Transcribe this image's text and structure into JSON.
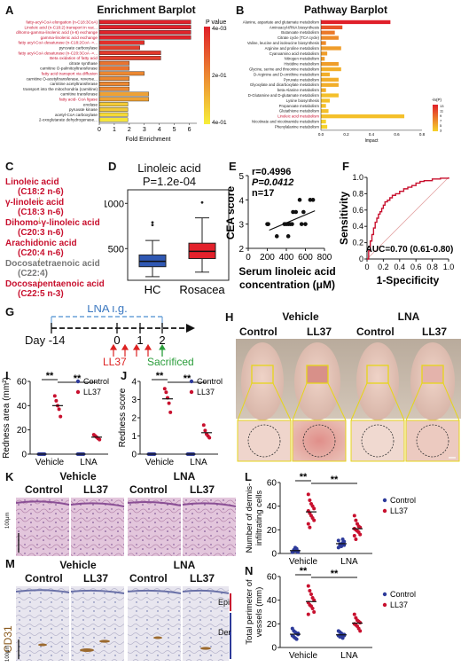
{
  "panels": {
    "A": {
      "letter": "A",
      "chart_data": {
        "type": "bar",
        "title": "Enrichment Barplot",
        "xlabel": "Fold Enrichment",
        "legend_title": "P value",
        "legend_ticks": [
          "4e-03",
          "2e-01",
          "4e-01"
        ],
        "x_ticks": [
          "0",
          "1",
          "2",
          "3",
          "4",
          "5",
          "6"
        ],
        "xlim": [
          0,
          6.5
        ],
        "categories": [
          "fatty-acyl-CoA elongation (n-C18:3CoA)",
          "Linoleic acid (n-C18:2) transport in vac...",
          "dihomo-gamma-linolenic acid (n-6) exchange",
          "gamma-linolenic acid exchange",
          "fatty acyl-CoA desaturase (n-C18:2CoA ->...",
          "pyruvate carboxylase",
          "fatty acyl-CoA desaturase (n-C20:3CoA ->...",
          "Beta oxidation of fatty acid",
          "citrate synthase",
          "carnitine O-palmitoyltransferase",
          "fatty acid transport via diffusion",
          "carnitine O-acetyltransferase, reverse...",
          "carnitine acetyltransferase",
          "transport into the mitochondria (carnitine)",
          "carnitine transferase",
          "fatty acid- CoA ligase",
          "enolase",
          "pyruvate kinase",
          "acetyl-CoA carboxylase",
          "2-oxoglutarate dehydrogenase..."
        ],
        "highlighted": [
          1,
          1,
          1,
          1,
          1,
          0,
          1,
          1,
          0,
          0,
          1,
          0,
          0,
          0,
          0,
          1,
          0,
          0,
          0,
          0
        ],
        "values": [
          6.1,
          6.1,
          6.1,
          6.1,
          3.0,
          2.7,
          4.1,
          4.1,
          2.0,
          2.0,
          3.0,
          2.0,
          2.0,
          2.0,
          3.3,
          3.3,
          1.9,
          1.9,
          1.9,
          1.9
        ],
        "pvalues": [
          0.004,
          0.004,
          0.004,
          0.004,
          0.03,
          0.06,
          0.05,
          0.06,
          0.16,
          0.16,
          0.2,
          0.2,
          0.2,
          0.2,
          0.25,
          0.25,
          0.33,
          0.33,
          0.36,
          0.38
        ]
      }
    },
    "B": {
      "letter": "B",
      "chart_data": {
        "type": "bar",
        "title": "Pathway Barplot",
        "xlabel": "Impact",
        "legend_title": "-ln(P)",
        "legend_ticks": [
          "13",
          "11",
          "9",
          "7",
          "5",
          "3"
        ],
        "x_ticks": [
          "0.0",
          "0.2",
          "0.4",
          "0.6",
          "0.8"
        ],
        "xlim": [
          0,
          0.8
        ],
        "categories": [
          "Alanine, aspartate and glutamate metabolism",
          "Aminoacyl-tRNA biosynthesis",
          "Butanoate metabolism",
          "Citrate cycle (TCA cycle)",
          "Valine, leucine and isoleucine biosynthesis",
          "Arginine and proline metabolism",
          "Cyanoamino acid metabolism",
          "Nitrogen metabolism",
          "Histidine metabolism",
          "Glycine, serine and threonine metabolism",
          "D-Arginine and D-ornithine metabolism",
          "Pyruvate metabolism",
          "Glyoxylate and dicarboxylate metabolism",
          "beta-Alanine metabolism",
          "D-Glutamine and D-glutamate metabolism",
          "Lysine biosynthesis",
          "Propanoate metabolism",
          "Glutathione metabolism",
          "Linoleic acid metabolism",
          "Nicotinate and nicotinamide metabolism",
          "Phenylalanine metabolism"
        ],
        "highlighted": [
          0,
          0,
          0,
          0,
          0,
          0,
          0,
          0,
          0,
          0,
          0,
          0,
          0,
          0,
          0,
          0,
          0,
          0,
          1,
          0,
          0
        ],
        "values": [
          0.55,
          0.17,
          0.11,
          0.14,
          0.04,
          0.16,
          0.05,
          0.03,
          0.14,
          0.16,
          0.07,
          0.14,
          0.14,
          0.04,
          0.14,
          0.07,
          0.04,
          0.06,
          0.66,
          0.04,
          0.05
        ],
        "neglogp": [
          13,
          10,
          8,
          7,
          7,
          6,
          6,
          6,
          6,
          5,
          5,
          5,
          5,
          5,
          4,
          4,
          4,
          4,
          4,
          3,
          3
        ]
      }
    },
    "C": {
      "letter": "C",
      "steps": [
        {
          "name": "Linoleic acid",
          "formula": "(C18:2 n-6)",
          "color": "#c8102e"
        },
        {
          "name": "γ-linoleic acid",
          "formula": "(C18:3 n-6)",
          "color": "#c8102e"
        },
        {
          "name": "Dihomo-γ-linoleic acid",
          "formula": "(C20:3 n-6)",
          "color": "#c8102e"
        },
        {
          "name": "Arachidonic acid",
          "formula": "(C20:4 n-6)",
          "color": "#c8102e"
        },
        {
          "name": "Docosatetraenoic acid",
          "formula": "(C22:4)",
          "color": "#777777"
        },
        {
          "name": "Docosapentaenoic acid",
          "formula": "(C22:5 n-3)",
          "color": "#c8102e"
        }
      ]
    },
    "D": {
      "letter": "D",
      "chart_data": {
        "type": "box",
        "title": "Linoleic acid",
        "subtitle": "P=1.2e-04",
        "categories": [
          "HC",
          "Rosacea"
        ],
        "colors": [
          "#2f58b3",
          "#e3212b"
        ],
        "y_ticks": [
          "500",
          "1000"
        ],
        "ylim": [
          150,
          1150
        ],
        "boxes": [
          {
            "whisker_low": 190,
            "q1": 300,
            "median": 360,
            "q3": 430,
            "whisker_high": 590,
            "outliers": [
              760,
              790
            ]
          },
          {
            "whisker_low": 240,
            "q1": 390,
            "median": 470,
            "q3": 560,
            "whisker_high": 840,
            "outliers": [
              1010
            ]
          }
        ]
      }
    },
    "E": {
      "letter": "E",
      "chart_data": {
        "type": "scatter",
        "ylabel": "CEA score",
        "xlabel_line1": "Serum linoleic acid",
        "xlabel_line2": "concentration (μM)",
        "stats_r": "r=0.4996",
        "stats_p": "P=0.0412",
        "stats_n": "n=17",
        "x_ticks": [
          "0",
          "200",
          "400",
          "600",
          "800"
        ],
        "y_ticks": [
          "2",
          "3",
          "4",
          "5"
        ],
        "xlim": [
          0,
          800
        ],
        "ylim": [
          2,
          5
        ],
        "x": [
          200,
          210,
          380,
          400,
          420,
          440,
          460,
          470,
          500,
          540,
          560,
          600,
          300,
          420,
          650,
          580,
          680
        ],
        "y": [
          3,
          3,
          3,
          3,
          3,
          3,
          3,
          3.5,
          3.5,
          4,
          3,
          3,
          2.5,
          2.5,
          4,
          3.5,
          4
        ],
        "fit": {
          "x": [
            220,
            700
          ],
          "y": [
            2.75,
            3.55
          ]
        }
      }
    },
    "F": {
      "letter": "F",
      "chart_data": {
        "type": "line",
        "ylabel": "Sensitivity",
        "xlabel": "1-Specificity",
        "auc_label": "AUC=0.70 (0.61-0.80)",
        "x_ticks": [
          "0",
          "0.2",
          "0.4",
          "0.6",
          "0.8",
          "1.0"
        ],
        "y_ticks": [
          "0",
          "0.2",
          "0.4",
          "0.6",
          "0.8",
          "1.0"
        ],
        "xlim": [
          0,
          1
        ],
        "ylim": [
          0,
          1
        ],
        "x": [
          0,
          0.02,
          0.04,
          0.06,
          0.08,
          0.1,
          0.12,
          0.14,
          0.16,
          0.18,
          0.2,
          0.22,
          0.25,
          0.28,
          0.31,
          0.35,
          0.4,
          0.45,
          0.5,
          0.55,
          0.6,
          0.65,
          0.7,
          0.8,
          0.9,
          1.0
        ],
        "y": [
          0,
          0.1,
          0.22,
          0.3,
          0.38,
          0.45,
          0.5,
          0.55,
          0.58,
          0.62,
          0.66,
          0.7,
          0.72,
          0.75,
          0.78,
          0.8,
          0.83,
          0.86,
          0.88,
          0.9,
          0.93,
          0.95,
          0.96,
          0.98,
          0.99,
          1.0
        ]
      }
    },
    "G": {
      "letter": "G",
      "lna_label": "LNA i.g.",
      "day_label": "Day -14",
      "ticks": [
        "0",
        "1",
        "2"
      ],
      "ll37_label": "LL37",
      "sacrificed_label": "Sacrificed"
    },
    "H": {
      "letter": "H",
      "group_vehicle": "Vehicle",
      "group_lna": "LNA",
      "sub_control": "Control",
      "sub_ll37": "LL37"
    },
    "I": {
      "letter": "I",
      "chart_data": {
        "type": "scatter",
        "ylabel": "Redness area (mm²)",
        "categories": [
          "Vehicle",
          "LNA"
        ],
        "legend": [
          "Control",
          "LL37"
        ],
        "colors": [
          "#2d3a9a",
          "#c8102e"
        ],
        "y_ticks": [
          "0",
          "20",
          "40",
          "60"
        ],
        "ylim": [
          0,
          60
        ],
        "series": [
          {
            "name": "Control",
            "values": [
              [
                0,
                0,
                0,
                0,
                0
              ],
              [
                0,
                0,
                0,
                0,
                0
              ]
            ]
          },
          {
            "name": "LL37",
            "values": [
              [
                48,
                44,
                40,
                37,
                31
              ],
              [
                16,
                15,
                14,
                13,
                12
              ]
            ]
          }
        ],
        "sig": [
          "**",
          "**"
        ]
      }
    },
    "J": {
      "letter": "J",
      "chart_data": {
        "type": "scatter",
        "ylabel": "Redness score",
        "categories": [
          "Vehicle",
          "LNA"
        ],
        "legend": [
          "Control",
          "LL37"
        ],
        "colors": [
          "#2d3a9a",
          "#c8102e"
        ],
        "y_ticks": [
          "0",
          "1",
          "2",
          "3",
          "4"
        ],
        "ylim": [
          0,
          4
        ],
        "series": [
          {
            "name": "Control",
            "values": [
              [
                0,
                0,
                0,
                0,
                0
              ],
              [
                0,
                0,
                0,
                0,
                0
              ]
            ]
          },
          {
            "name": "LL37",
            "values": [
              [
                3.6,
                3.4,
                3.1,
                2.8,
                2.3
              ],
              [
                1.6,
                1.3,
                1.1,
                1.0,
                0.9
              ]
            ]
          }
        ],
        "sig": [
          "**",
          "**"
        ]
      }
    },
    "K": {
      "letter": "K",
      "group_vehicle": "Vehicle",
      "group_lna": "LNA",
      "sub_control": "Control",
      "sub_ll37": "LL37",
      "scale": "100μm"
    },
    "L": {
      "letter": "L",
      "chart_data": {
        "type": "scatter",
        "ylabel_line1": "Number of dermis-",
        "ylabel_line2": "infiltrating cells",
        "categories": [
          "Vehicle",
          "LNA"
        ],
        "legend": [
          "Control",
          "LL37"
        ],
        "colors": [
          "#2d3a9a",
          "#c8102e"
        ],
        "y_ticks": [
          "0",
          "20",
          "40",
          "60"
        ],
        "ylim": [
          0,
          60
        ],
        "series": [
          {
            "name": "Control",
            "values": [
              [
                1,
                2,
                3,
                4,
                2,
                1,
                3,
                5,
                2,
                1
              ],
              [
                5,
                7,
                8,
                9,
                10,
                11,
                8,
                6,
                12,
                7
              ]
            ]
          },
          {
            "name": "LL37",
            "values": [
              [
                50,
                45,
                42,
                40,
                38,
                36,
                34,
                32,
                30,
                28,
                25,
                22
              ],
              [
                32,
                28,
                25,
                23,
                22,
                21,
                20,
                19,
                18,
                16,
                15,
                12
              ]
            ]
          }
        ],
        "sig": [
          "**",
          "**"
        ]
      }
    },
    "M": {
      "letter": "M",
      "group_vehicle": "Vehicle",
      "group_lna": "LNA",
      "sub_control": "Control",
      "sub_ll37": "LL37",
      "stain": "CD31",
      "epi": "Epi",
      "der": "Der",
      "scale": "100μm"
    },
    "N": {
      "letter": "N",
      "chart_data": {
        "type": "scatter",
        "ylabel_line1": "Total perimeter of",
        "ylabel_line2": "vessels (mm)",
        "categories": [
          "Vehicle",
          "LNA"
        ],
        "legend": [
          "Control",
          "LL37"
        ],
        "colors": [
          "#2d3a9a",
          "#c8102e"
        ],
        "y_ticks": [
          "0",
          "20",
          "40",
          "60"
        ],
        "ylim": [
          0,
          60
        ],
        "series": [
          {
            "name": "Control",
            "values": [
              [
                16,
                14,
                13,
                12,
                11,
                10,
                9,
                8,
                7,
                12
              ],
              [
                14,
                13,
                12,
                11,
                10,
                10,
                9,
                9,
                8,
                11
              ]
            ]
          },
          {
            "name": "LL37",
            "values": [
              [
                52,
                48,
                45,
                42,
                40,
                38,
                36,
                35,
                33,
                30,
                28
              ],
              [
                28,
                25,
                23,
                22,
                21,
                20,
                19,
                18,
                16,
                14
              ]
            ]
          }
        ],
        "sig": [
          "**",
          "**"
        ]
      }
    }
  }
}
